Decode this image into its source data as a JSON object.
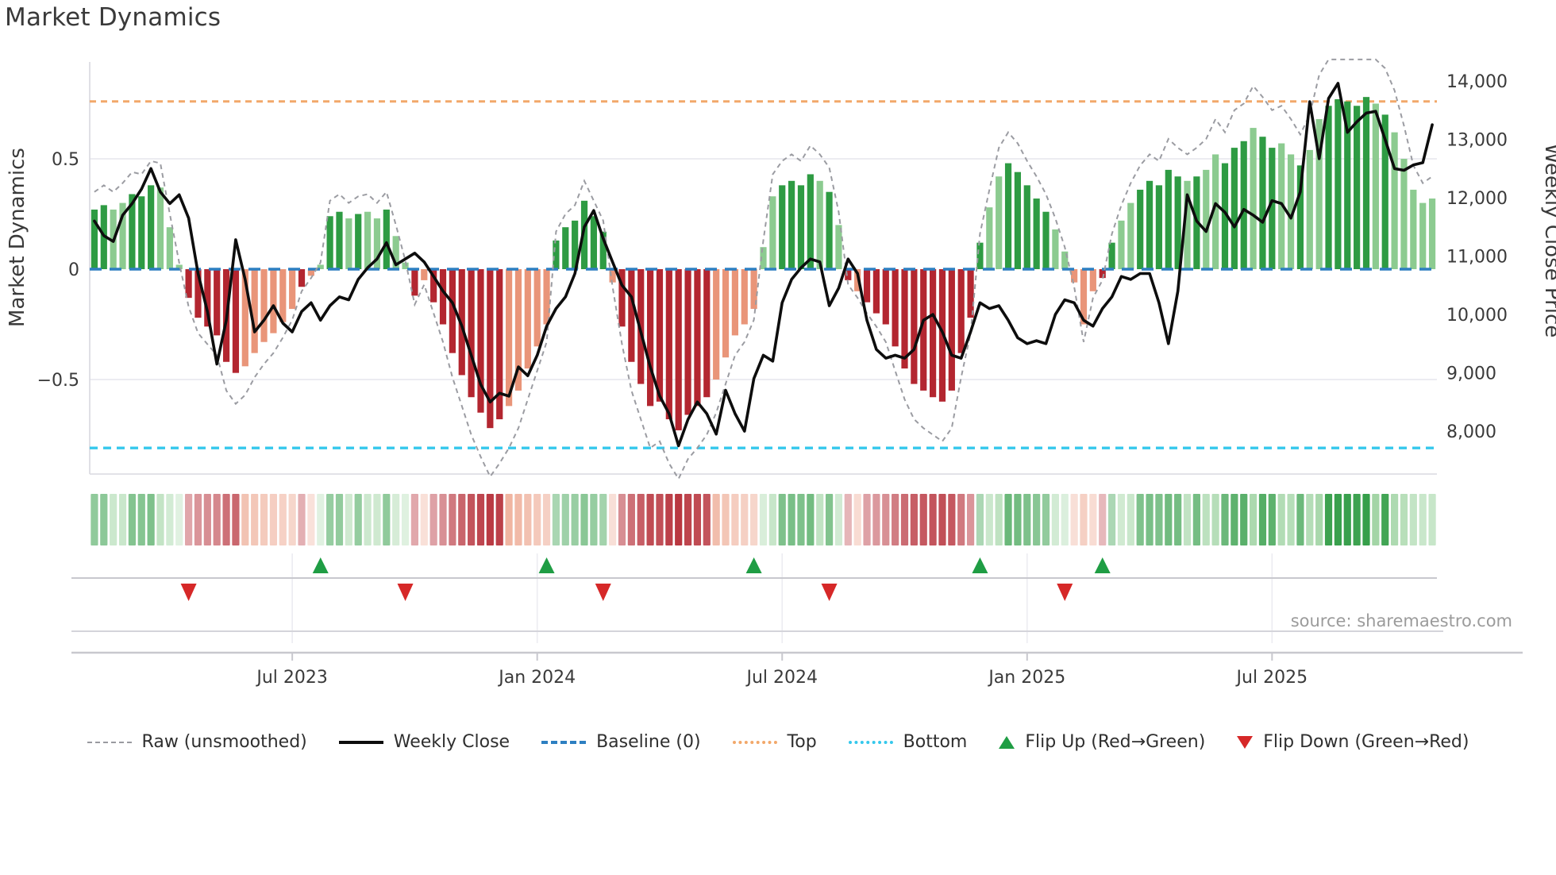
{
  "page": {
    "title": "Market Dynamics",
    "source_note": "source: sharemaestro.com"
  },
  "axes": {
    "left_title": "Market Dynamics",
    "right_title": "Weekly Close Price"
  },
  "legend": {
    "items": [
      {
        "glyph": "raw-dash-line",
        "label": "Raw (unsmoothed)"
      },
      {
        "glyph": "solid-black-line",
        "label": "Weekly Close"
      },
      {
        "glyph": "blue-dash-line",
        "label": "Baseline (0)"
      },
      {
        "glyph": "orange-dot-line",
        "label": "Top"
      },
      {
        "glyph": "cyan-dot-line",
        "label": "Bottom"
      },
      {
        "glyph": "green-up-triangle",
        "label": "Flip Up (Red→Green)"
      },
      {
        "glyph": "red-down-triangle",
        "label": "Flip Down (Green→Red)"
      }
    ]
  },
  "colors": {
    "bar_dark_green": "#2e9b43",
    "bar_light_green": "#8ccb90",
    "bar_dark_red": "#b32630",
    "bar_light_red": "#e99579",
    "weekly_close_line": "#0d0d0d",
    "raw_line": "#9b9ca2",
    "baseline": "#2d7fc1",
    "top_line": "#f2a86a",
    "bottom_line": "#35c8ec",
    "grid": "#ececf1",
    "spine": "#d9d9e0",
    "axis_line": "#c8c8ce",
    "text": "#3a3a3a",
    "muted_text": "#9b9b9b",
    "flip_up": "#1f9d44",
    "flip_down": "#d62828"
  },
  "chart_data": {
    "type": "combo",
    "n_weeks": 143,
    "levels": {
      "baseline": 0,
      "top": 0.76,
      "bottom": -0.81
    },
    "left_axis": {
      "ticks": [
        0.5,
        0,
        -0.5
      ],
      "tick_labels": [
        "0.5",
        "0",
        "−0.5"
      ],
      "range": [
        -0.93,
        0.94
      ]
    },
    "right_axis": {
      "ticks": [
        14000,
        13000,
        12000,
        11000,
        10000,
        9000,
        8000
      ],
      "tick_labels": [
        "14,000",
        "13,000",
        "12,000",
        "11,000",
        "10,000",
        "9,000",
        "8,000"
      ],
      "range": [
        7270,
        14330
      ]
    },
    "x_axis": {
      "tick_weeks": [
        21,
        47,
        73,
        99,
        125
      ],
      "tick_labels": [
        "Jul 2023",
        "Jan 2024",
        "Jul 2024",
        "Jan 2025",
        "Jul 2025"
      ]
    },
    "oscillator": {
      "name": "Market Dynamics oscillator (bars + heatmap)",
      "values": [
        0.27,
        0.29,
        0.27,
        0.3,
        0.34,
        0.33,
        0.38,
        0.37,
        0.19,
        0.02,
        -0.13,
        -0.22,
        -0.26,
        -0.3,
        -0.42,
        -0.47,
        -0.44,
        -0.38,
        -0.33,
        -0.29,
        -0.24,
        -0.18,
        -0.08,
        -0.03,
        0.02,
        0.24,
        0.26,
        0.23,
        0.25,
        0.26,
        0.23,
        0.27,
        0.15,
        0.03,
        -0.12,
        -0.05,
        -0.15,
        -0.25,
        -0.38,
        -0.48,
        -0.58,
        -0.65,
        -0.72,
        -0.68,
        -0.62,
        -0.55,
        -0.45,
        -0.35,
        -0.25,
        0.13,
        0.19,
        0.22,
        0.31,
        0.24,
        0.17,
        -0.06,
        -0.26,
        -0.42,
        -0.52,
        -0.62,
        -0.6,
        -0.68,
        -0.73,
        -0.66,
        -0.62,
        -0.58,
        -0.5,
        -0.4,
        -0.3,
        -0.25,
        -0.18,
        0.1,
        0.33,
        0.38,
        0.4,
        0.38,
        0.43,
        0.4,
        0.35,
        0.2,
        -0.05,
        -0.1,
        -0.15,
        -0.2,
        -0.25,
        -0.35,
        -0.45,
        -0.52,
        -0.55,
        -0.58,
        -0.6,
        -0.55,
        -0.38,
        -0.22,
        0.12,
        0.28,
        0.42,
        0.48,
        0.44,
        0.38,
        0.32,
        0.26,
        0.18,
        0.08,
        -0.06,
        -0.25,
        -0.1,
        -0.04,
        0.12,
        0.22,
        0.3,
        0.36,
        0.4,
        0.38,
        0.45,
        0.42,
        0.4,
        0.42,
        0.45,
        0.52,
        0.48,
        0.55,
        0.58,
        0.64,
        0.6,
        0.55,
        0.57,
        0.52,
        0.47,
        0.54,
        0.68,
        0.74,
        0.77,
        0.76,
        0.74,
        0.78,
        0.75,
        0.7,
        0.62,
        0.5,
        0.36,
        0.3,
        0.32
      ],
      "shades": "ddlldddlllddddddlllllldllddldlldlldlddddddddlllllddddddlddddddddddlllllllddddldldldddddddddddddlldddddlllllddlldddd0ldlldddlddlldlldddddldllllld"
    },
    "raw": {
      "name": "Raw (unsmoothed)",
      "values": [
        0.35,
        0.38,
        0.35,
        0.39,
        0.44,
        0.43,
        0.49,
        0.48,
        0.25,
        0.03,
        -0.17,
        -0.29,
        -0.34,
        -0.39,
        -0.55,
        -0.61,
        -0.57,
        -0.49,
        -0.43,
        -0.38,
        -0.31,
        -0.23,
        -0.1,
        -0.04,
        0.03,
        0.31,
        0.34,
        0.3,
        0.33,
        0.34,
        0.3,
        0.35,
        0.2,
        0.04,
        -0.16,
        -0.07,
        -0.2,
        -0.33,
        -0.49,
        -0.62,
        -0.75,
        -0.85,
        -0.94,
        -0.88,
        -0.81,
        -0.72,
        -0.59,
        -0.46,
        -0.33,
        0.17,
        0.25,
        0.29,
        0.4,
        0.31,
        0.22,
        -0.08,
        -0.34,
        -0.55,
        -0.68,
        -0.81,
        -0.78,
        -0.88,
        -0.95,
        -0.86,
        -0.81,
        -0.75,
        -0.65,
        -0.52,
        -0.39,
        -0.33,
        -0.23,
        0.13,
        0.43,
        0.49,
        0.52,
        0.49,
        0.56,
        0.52,
        0.46,
        0.26,
        -0.07,
        -0.13,
        -0.2,
        -0.26,
        -0.33,
        -0.46,
        -0.59,
        -0.68,
        -0.72,
        -0.75,
        -0.78,
        -0.72,
        -0.49,
        -0.29,
        0.16,
        0.36,
        0.55,
        0.62,
        0.57,
        0.49,
        0.42,
        0.34,
        0.23,
        0.1,
        -0.08,
        -0.33,
        -0.13,
        -0.05,
        0.16,
        0.29,
        0.39,
        0.47,
        0.52,
        0.49,
        0.59,
        0.55,
        0.52,
        0.55,
        0.59,
        0.68,
        0.62,
        0.72,
        0.75,
        0.83,
        0.78,
        0.72,
        0.74,
        0.68,
        0.61,
        0.7,
        0.88,
        0.95,
        0.95,
        0.95,
        0.95,
        0.95,
        0.95,
        0.91,
        0.81,
        0.65,
        0.47,
        0.39,
        0.42
      ]
    },
    "weekly_close": {
      "name": "Weekly Close",
      "axis": "right",
      "values": [
        11600,
        11350,
        11250,
        11700,
        11900,
        12150,
        12500,
        12100,
        11900,
        12050,
        11650,
        10700,
        10050,
        9150,
        9900,
        11280,
        10600,
        9700,
        9900,
        10150,
        9850,
        9700,
        10050,
        10200,
        9900,
        10150,
        10300,
        10250,
        10600,
        10800,
        10950,
        11230,
        10850,
        10950,
        11050,
        10900,
        10650,
        10400,
        10200,
        9800,
        9300,
        8800,
        8500,
        8650,
        8600,
        9100,
        8950,
        9300,
        9800,
        10100,
        10300,
        10700,
        11500,
        11780,
        11300,
        10900,
        10500,
        10300,
        9700,
        9100,
        8600,
        8300,
        7750,
        8200,
        8500,
        8300,
        7950,
        8700,
        8300,
        8000,
        8900,
        9300,
        9200,
        10200,
        10600,
        10800,
        10950,
        10900,
        10150,
        10450,
        10950,
        10700,
        9900,
        9400,
        9250,
        9300,
        9250,
        9400,
        9900,
        10000,
        9700,
        9300,
        9250,
        9700,
        10200,
        10100,
        10150,
        9900,
        9600,
        9500,
        9550,
        9500,
        10000,
        10250,
        10200,
        9900,
        9800,
        10100,
        10300,
        10650,
        10600,
        10700,
        10700,
        10200,
        9500,
        10400,
        12050,
        11600,
        11420,
        11900,
        11750,
        11500,
        11800,
        11700,
        11580,
        11950,
        11900,
        11650,
        12100,
        13645,
        12670,
        13700,
        13960,
        13120,
        13300,
        13450,
        13480,
        13000,
        12500,
        12470,
        12560,
        12600,
        13250
      ]
    },
    "markers": {
      "flip_up_weeks": [
        24,
        48,
        70,
        94,
        107
      ],
      "flip_down_weeks": [
        10,
        33,
        54,
        78,
        103
      ]
    },
    "heatmap": {
      "note": "strip below chart uses oscillator values/shades, intensity proportional to |value|"
    }
  }
}
